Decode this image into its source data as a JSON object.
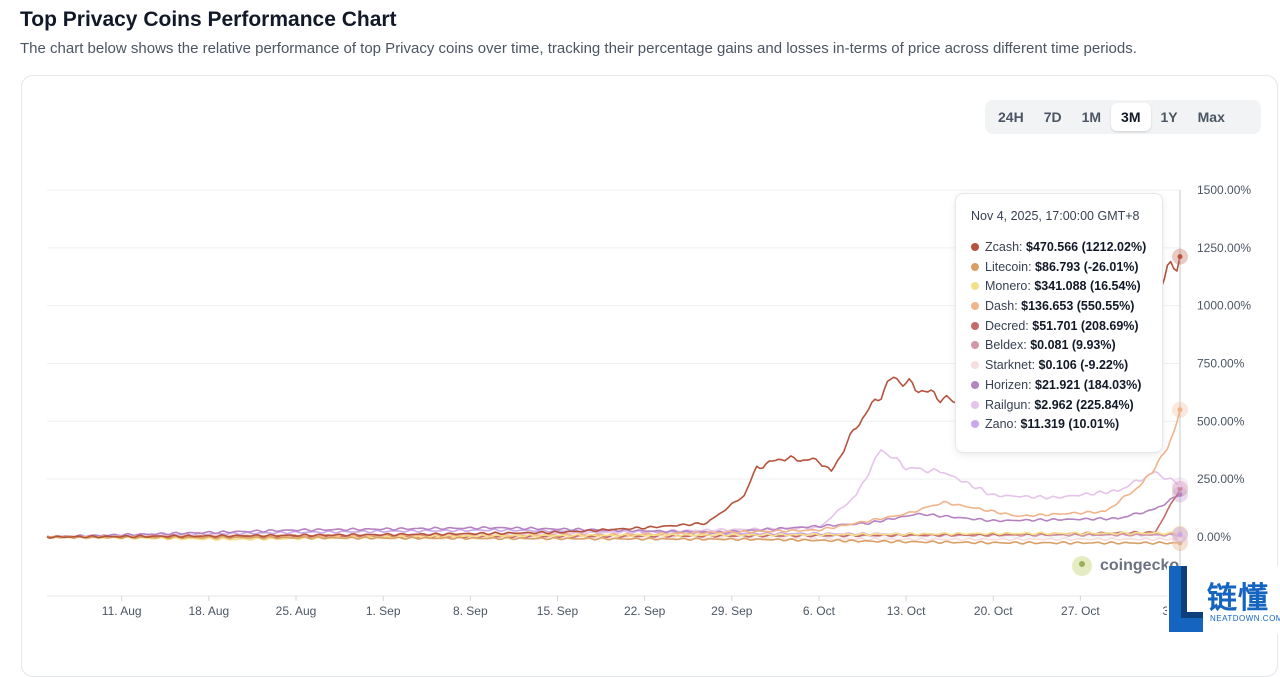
{
  "header": {
    "title": "Top Privacy Coins Performance Chart",
    "subtitle": "The chart below shows the relative performance of top Privacy coins over time, tracking their percentage gains and losses in-terms of price across different time periods."
  },
  "range_tabs": [
    {
      "label": "24H",
      "active": false
    },
    {
      "label": "7D",
      "active": false
    },
    {
      "label": "1M",
      "active": false
    },
    {
      "label": "3M",
      "active": true
    },
    {
      "label": "1Y",
      "active": false
    },
    {
      "label": "Max",
      "active": false
    }
  ],
  "tooltip": {
    "date": "Nov 4, 2025, 17:00:00 GMT+8",
    "rows": [
      {
        "name": "Zcash",
        "value": "$470.566 (1212.02%)",
        "color": "#b5533c"
      },
      {
        "name": "Litecoin",
        "value": "$86.793 (-26.01%)",
        "color": "#d9a066"
      },
      {
        "name": "Monero",
        "value": "$341.088 (16.54%)",
        "color": "#f5e08a"
      },
      {
        "name": "Dash",
        "value": "$136.653 (550.55%)",
        "color": "#f0b48a"
      },
      {
        "name": "Decred",
        "value": "$51.701 (208.69%)",
        "color": "#c56a6a"
      },
      {
        "name": "Beldex",
        "value": "$0.081 (9.93%)",
        "color": "#d496a8"
      },
      {
        "name": "Starknet",
        "value": "$0.106 (-9.22%)",
        "color": "#f6dede"
      },
      {
        "name": "Horizen",
        "value": "$21.921 (184.03%)",
        "color": "#b583c2"
      },
      {
        "name": "Railgun",
        "value": "$2.962 (225.84%)",
        "color": "#e6c3ea"
      },
      {
        "name": "Zano",
        "value": "$11.319 (10.01%)",
        "color": "#c8a8ea"
      }
    ]
  },
  "watermark": "coingecko",
  "brand": {
    "cn": "链懂",
    "en": "NEATDOWN.COM"
  },
  "chart_data": {
    "type": "line",
    "title": "",
    "xlabel": "",
    "ylabel": "",
    "x_ticks": [
      "11. Aug",
      "18. Aug",
      "25. Aug",
      "1. Sep",
      "8. Sep",
      "15. Sep",
      "22. Sep",
      "29. Sep",
      "6. Oct",
      "13. Oct",
      "20. Oct",
      "27. Oct",
      "3."
    ],
    "y_ticks": [
      "1500.00%",
      "1250.00%",
      "1000.00%",
      "750.00%",
      "500.00%",
      "250.00%",
      "0.00%"
    ],
    "y_tick_values": [
      1500,
      1250,
      1000,
      750,
      500,
      250,
      0
    ],
    "ylim": [
      -250,
      1500
    ],
    "x_range": [
      "2025-08-05",
      "2025-11-04"
    ],
    "grid": true,
    "legend": "tooltip-top-right",
    "series": [
      {
        "name": "Zcash",
        "color": "#b5533c",
        "points": [
          [
            "2025-08-05",
            0
          ],
          [
            "2025-08-20",
            5
          ],
          [
            "2025-09-05",
            12
          ],
          [
            "2025-09-15",
            20
          ],
          [
            "2025-09-22",
            40
          ],
          [
            "2025-09-27",
            60
          ],
          [
            "2025-09-30",
            180
          ],
          [
            "2025-10-01",
            300
          ],
          [
            "2025-10-03",
            340
          ],
          [
            "2025-10-06",
            330
          ],
          [
            "2025-10-07",
            280
          ],
          [
            "2025-10-09",
            480
          ],
          [
            "2025-10-11",
            620
          ],
          [
            "2025-10-12",
            690
          ],
          [
            "2025-10-14",
            640
          ],
          [
            "2025-10-16",
            600
          ],
          [
            "2025-10-18",
            560
          ],
          [
            "2025-10-20",
            480
          ],
          [
            "2025-10-22",
            440
          ],
          [
            "2025-10-25",
            500
          ],
          [
            "2025-10-28",
            600
          ],
          [
            "2025-10-31",
            900
          ],
          [
            "2025-11-02",
            1000
          ],
          [
            "2025-11-03",
            1150
          ],
          [
            "2025-11-04",
            1212
          ]
        ]
      },
      {
        "name": "Litecoin",
        "color": "#d9a066",
        "points": [
          [
            "2025-08-05",
            0
          ],
          [
            "2025-09-05",
            -5
          ],
          [
            "2025-10-01",
            -10
          ],
          [
            "2025-10-12",
            -20
          ],
          [
            "2025-10-20",
            -25
          ],
          [
            "2025-11-04",
            -26
          ]
        ]
      },
      {
        "name": "Monero",
        "color": "#f5e08a",
        "points": [
          [
            "2025-08-05",
            0
          ],
          [
            "2025-08-20",
            -10
          ],
          [
            "2025-09-10",
            5
          ],
          [
            "2025-10-05",
            10
          ],
          [
            "2025-10-20",
            15
          ],
          [
            "2025-11-04",
            16.5
          ]
        ]
      },
      {
        "name": "Dash",
        "color": "#f0b48a",
        "points": [
          [
            "2025-08-05",
            0
          ],
          [
            "2025-09-20",
            10
          ],
          [
            "2025-10-06",
            30
          ],
          [
            "2025-10-13",
            100
          ],
          [
            "2025-10-16",
            150
          ],
          [
            "2025-10-22",
            90
          ],
          [
            "2025-10-29",
            110
          ],
          [
            "2025-11-01",
            230
          ],
          [
            "2025-11-03",
            380
          ],
          [
            "2025-11-04",
            550
          ]
        ]
      },
      {
        "name": "Decred",
        "color": "#c56a6a",
        "points": [
          [
            "2025-08-05",
            0
          ],
          [
            "2025-10-01",
            5
          ],
          [
            "2025-10-20",
            10
          ],
          [
            "2025-11-02",
            20
          ],
          [
            "2025-11-04",
            208
          ]
        ]
      },
      {
        "name": "Beldex",
        "color": "#d496a8",
        "points": [
          [
            "2025-08-05",
            0
          ],
          [
            "2025-10-01",
            5
          ],
          [
            "2025-11-04",
            10
          ]
        ]
      },
      {
        "name": "Starknet",
        "color": "#f6dede",
        "points": [
          [
            "2025-08-05",
            0
          ],
          [
            "2025-09-15",
            -5
          ],
          [
            "2025-10-15",
            -10
          ],
          [
            "2025-11-04",
            -9
          ]
        ]
      },
      {
        "name": "Horizen",
        "color": "#b583c2",
        "points": [
          [
            "2025-08-05",
            0
          ],
          [
            "2025-08-25",
            30
          ],
          [
            "2025-09-10",
            40
          ],
          [
            "2025-09-28",
            20
          ],
          [
            "2025-10-10",
            60
          ],
          [
            "2025-10-14",
            100
          ],
          [
            "2025-10-20",
            70
          ],
          [
            "2025-10-30",
            80
          ],
          [
            "2025-11-02",
            120
          ],
          [
            "2025-11-04",
            184
          ]
        ]
      },
      {
        "name": "Railgun",
        "color": "#e6c3ea",
        "points": [
          [
            "2025-08-05",
            0
          ],
          [
            "2025-09-15",
            15
          ],
          [
            "2025-10-06",
            40
          ],
          [
            "2025-10-09",
            180
          ],
          [
            "2025-10-11",
            380
          ],
          [
            "2025-10-13",
            300
          ],
          [
            "2025-10-16",
            280
          ],
          [
            "2025-10-20",
            180
          ],
          [
            "2025-10-25",
            170
          ],
          [
            "2025-10-30",
            200
          ],
          [
            "2025-11-02",
            280
          ],
          [
            "2025-11-04",
            225
          ]
        ]
      },
      {
        "name": "Zano",
        "color": "#c8a8ea",
        "points": [
          [
            "2025-08-05",
            0
          ],
          [
            "2025-08-25",
            20
          ],
          [
            "2025-09-10",
            30
          ],
          [
            "2025-10-01",
            15
          ],
          [
            "2025-11-04",
            10
          ]
        ]
      }
    ]
  }
}
